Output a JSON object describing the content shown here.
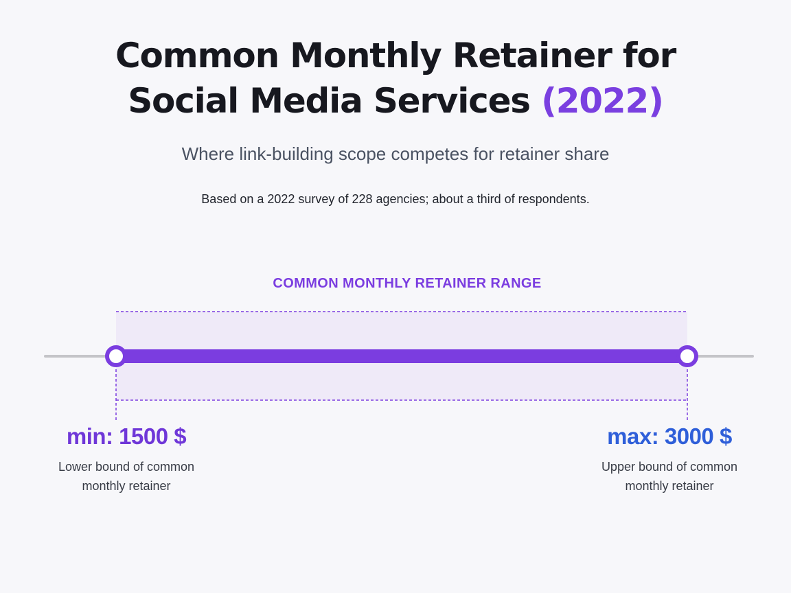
{
  "title": {
    "line1": "Common Monthly Retainer for",
    "line2": "Social Media Services",
    "year": "(2022)"
  },
  "subtitle": "Where link-building scope competes for retainer share",
  "note": "Based on a 2022 survey of 228 agencies; about a third of respondents.",
  "colors": {
    "accent": "#7b3de0",
    "min": "#6f37d8",
    "max": "#2f5fd9",
    "track": "#c4c4c8",
    "band": "#efeaf8"
  },
  "chart_data": {
    "type": "range",
    "title": "COMMON MONTHLY RETAINER RANGE",
    "unit": "$",
    "min": 1500,
    "max": 3000,
    "min_label": "min: 1500 $",
    "max_label": "max:  3000 $",
    "min_description": "Lower bound of common monthly retainer",
    "max_description": "Upper bound of common monthly retainer"
  }
}
